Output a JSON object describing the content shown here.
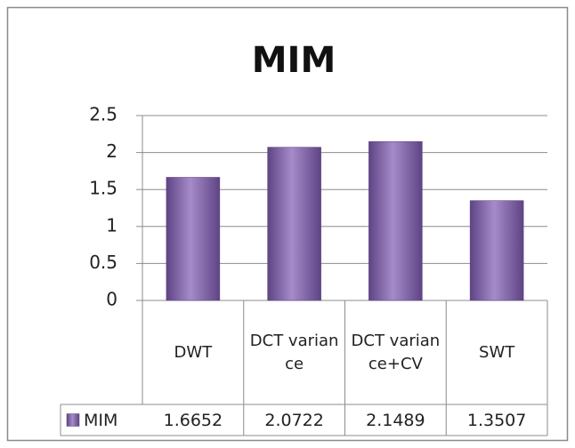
{
  "chart_data": {
    "type": "bar",
    "title": "MIM",
    "categories": [
      "DWT",
      "DCT variance",
      "DCT variance+CV",
      "SWT"
    ],
    "series": [
      {
        "name": "MIM",
        "color": "#7d5fa6",
        "values": [
          1.6652,
          2.0722,
          2.1489,
          1.3507
        ]
      }
    ],
    "ylim": [
      0,
      2.5
    ],
    "yticks": [
      0,
      {
        "value": 0.5,
        "label": "0.5"
      },
      1,
      {
        "value": 1.5,
        "label": "1.5"
      },
      2,
      {
        "value": 2.5,
        "label": "2.5"
      }
    ],
    "grid": true,
    "data_table": true
  }
}
